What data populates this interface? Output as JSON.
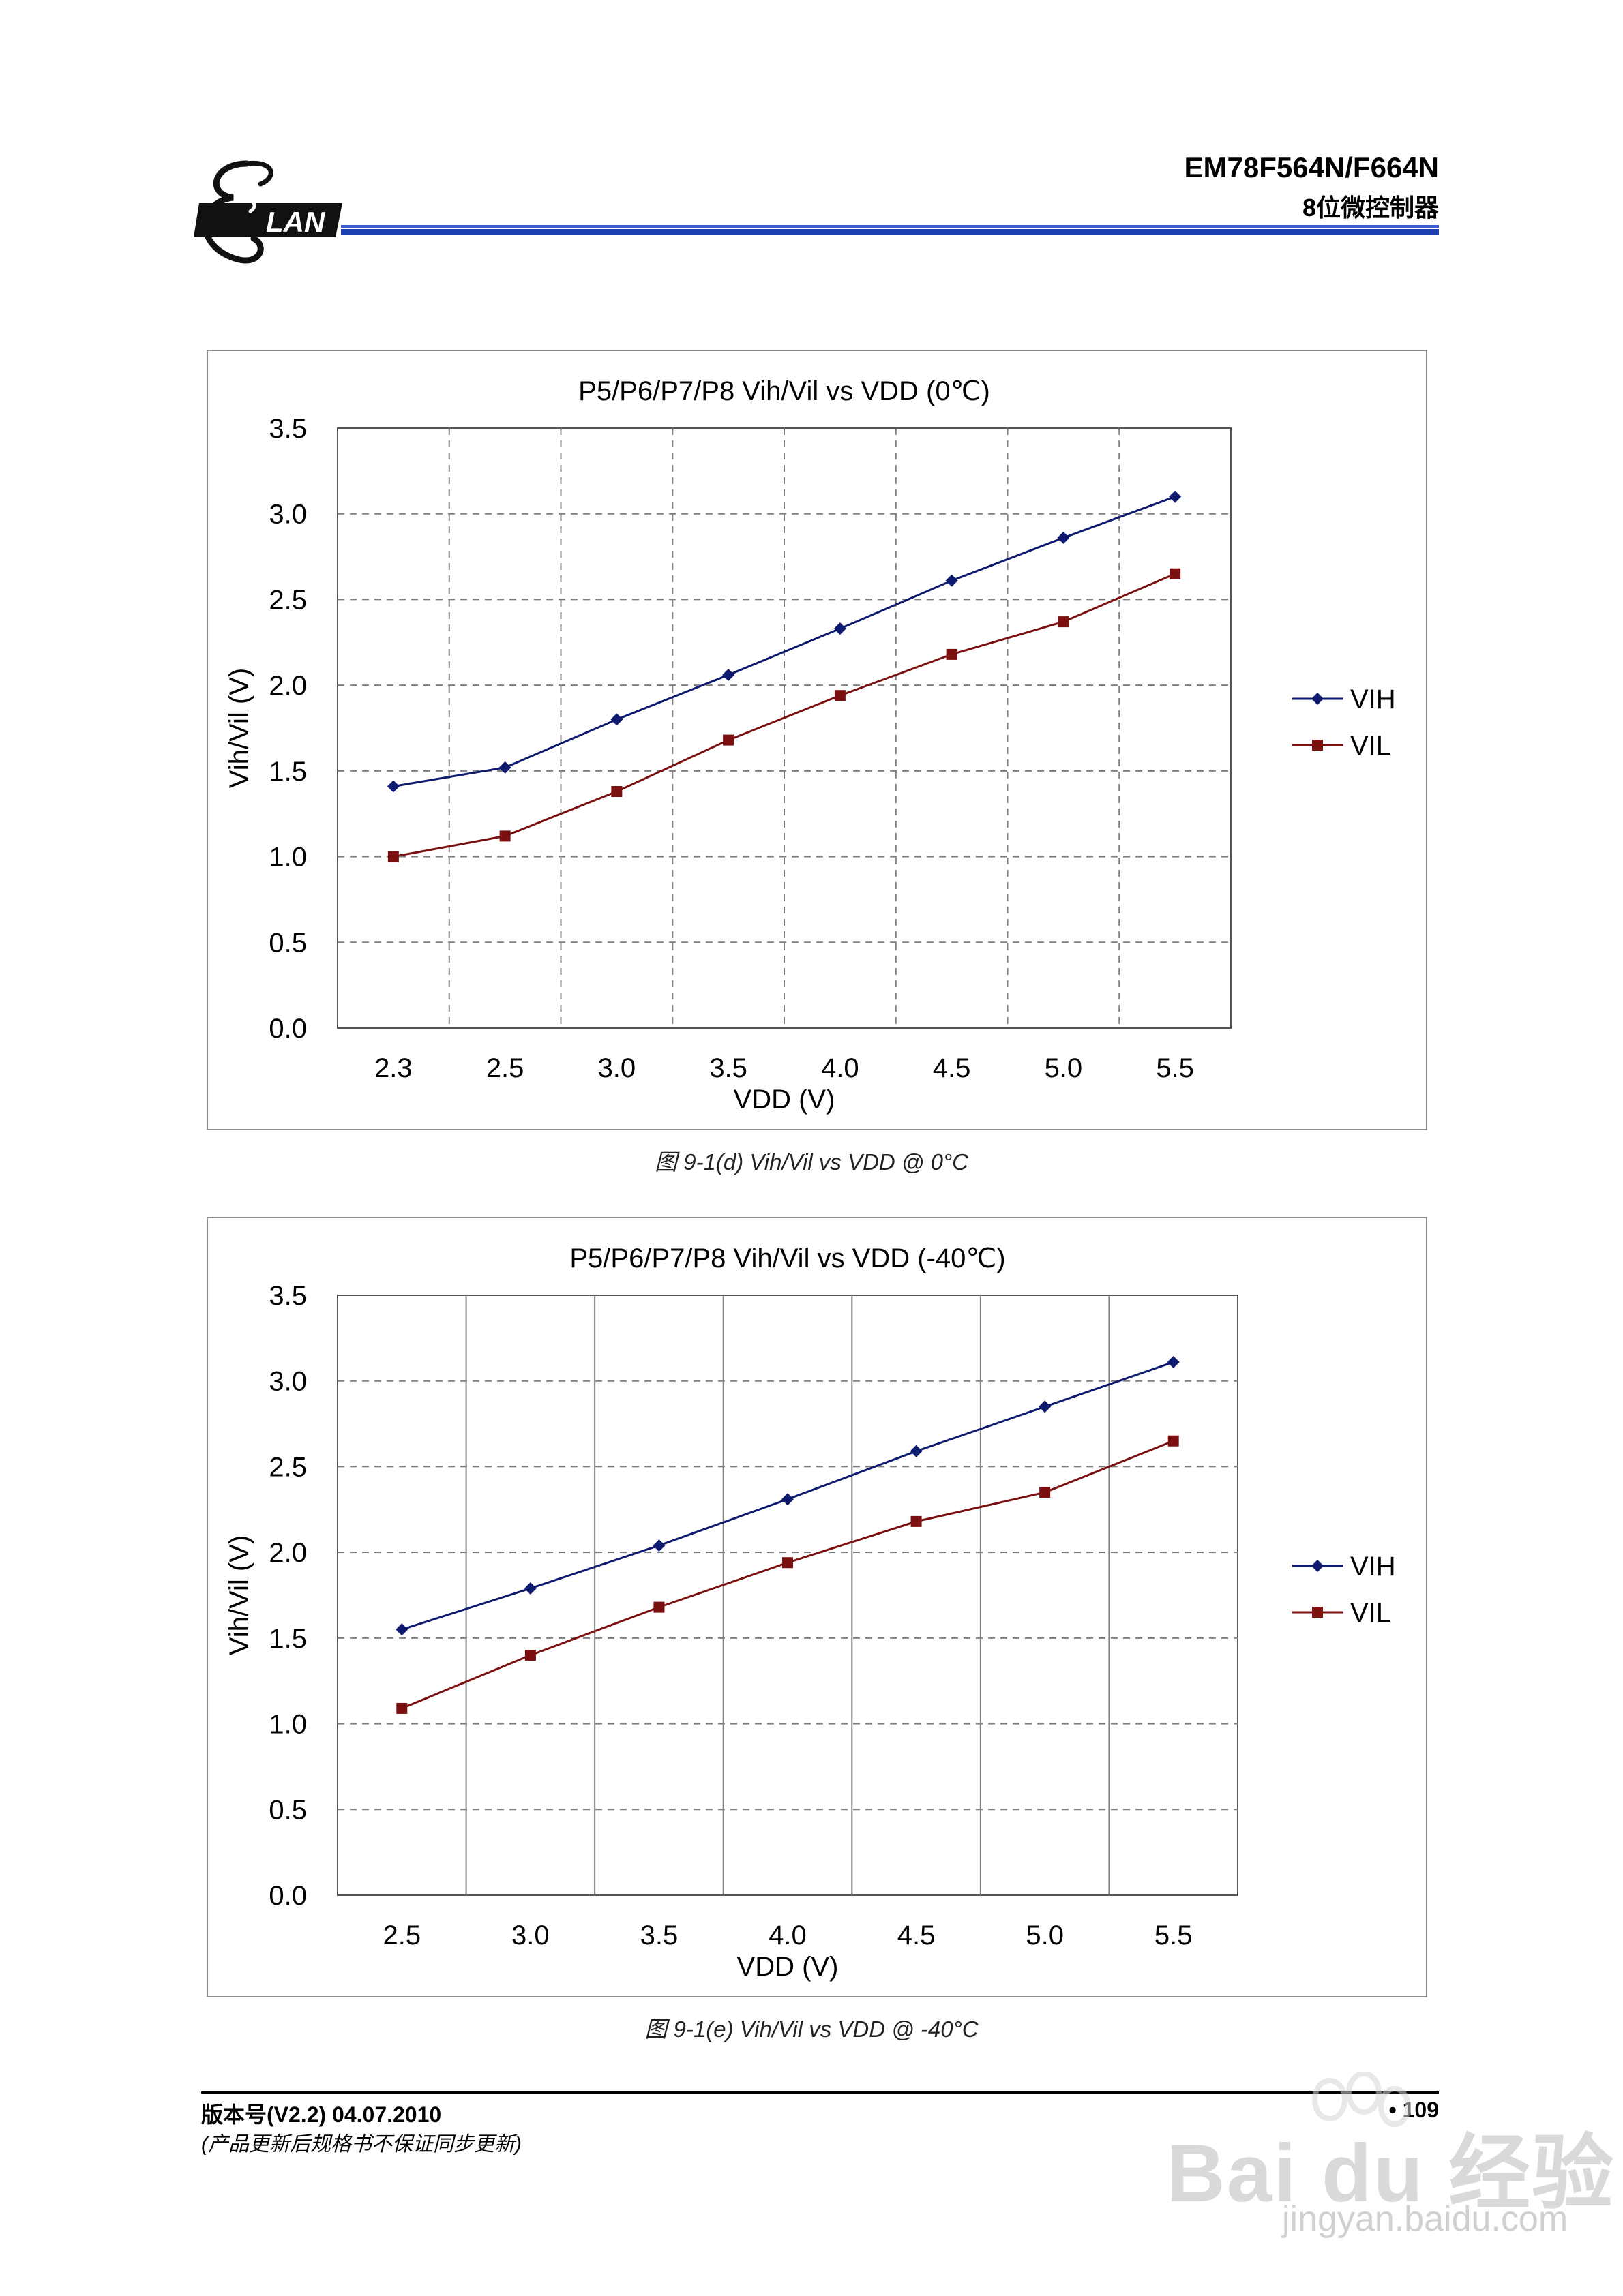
{
  "header": {
    "logo_text": "LAN",
    "title": "EM78F564N/F664N",
    "subtitle": "8位微控制器"
  },
  "colors": {
    "vih": "#0d1a6e",
    "vil": "#7a1010",
    "rule_blue": "#2255cc",
    "grid": "#7f7f7f"
  },
  "charts": [
    {
      "title": "P5/P6/P7/P8 Vih/Vil vs VDD (0℃)",
      "caption": "图 9-1(d) Vih/Vil vs VDD @ 0°C"
    },
    {
      "title": "P5/P6/P7/P8 Vih/Vil vs VDD (-40℃)",
      "caption": "图 9-1(e) Vih/Vil vs VDD @ -40°C"
    }
  ],
  "chart_data": [
    {
      "type": "line",
      "title": "P5/P6/P7/P8 Vih/Vil vs VDD (0℃)",
      "xlabel": "VDD (V)",
      "ylabel": "Vih/Vil (V)",
      "categories": [
        "2.3",
        "2.5",
        "3.0",
        "3.5",
        "4.0",
        "4.5",
        "5.0",
        "5.5"
      ],
      "ylim": [
        0,
        3.5
      ],
      "yticks": [
        "0.0",
        "0.5",
        "1.0",
        "1.5",
        "2.0",
        "2.5",
        "3.0",
        "3.5"
      ],
      "grid": "dashed",
      "legend": "right",
      "series": [
        {
          "name": "VIH",
          "marker": "diamond",
          "values": [
            1.41,
            1.52,
            1.8,
            2.06,
            2.33,
            2.61,
            2.86,
            3.1
          ]
        },
        {
          "name": "VIL",
          "marker": "square",
          "values": [
            1.0,
            1.12,
            1.38,
            1.68,
            1.94,
            2.18,
            2.37,
            2.65
          ]
        }
      ]
    },
    {
      "type": "line",
      "title": "P5/P6/P7/P8 Vih/Vil vs VDD (-40℃)",
      "xlabel": "VDD (V)",
      "ylabel": "Vih/Vil (V)",
      "categories": [
        "2.5",
        "3.0",
        "3.5",
        "4.0",
        "4.5",
        "5.0",
        "5.5"
      ],
      "ylim": [
        0,
        3.5
      ],
      "yticks": [
        "0.0",
        "0.5",
        "1.0",
        "1.5",
        "2.0",
        "2.5",
        "3.0",
        "3.5"
      ],
      "grid": "mixed",
      "legend": "right",
      "series": [
        {
          "name": "VIH",
          "marker": "diamond",
          "values": [
            1.55,
            1.79,
            2.04,
            2.31,
            2.59,
            2.85,
            3.11
          ]
        },
        {
          "name": "VIL",
          "marker": "square",
          "values": [
            1.09,
            1.4,
            1.68,
            1.94,
            2.18,
            2.35,
            2.65
          ]
        }
      ]
    }
  ],
  "footer": {
    "version": "版本号(V2.2) 04.07.2010",
    "note": "(产品更新后规格书不保证同步更新)",
    "page": "• 109"
  },
  "watermark": {
    "brand": "Bai du 经验",
    "url": "jingyan.baidu.com"
  }
}
